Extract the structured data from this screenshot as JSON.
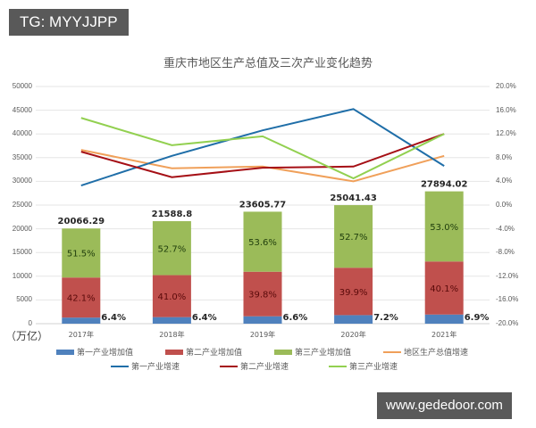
{
  "watermarks": {
    "top": "TG: MYYJJPP",
    "bottom": "www.gededoor.com"
  },
  "chart_data": {
    "type": "bar",
    "subtype": "stacked bar + line combo (dual axis)",
    "title": "重庆市地区生产总值及三次产业变化趋势",
    "xlabel": "",
    "ylabel": "（万亿）",
    "y2label": "",
    "categories": [
      "2017年",
      "2018年",
      "2019年",
      "2020年",
      "2021年"
    ],
    "ylim": [
      0,
      50000
    ],
    "y_ticks": [
      "50000",
      "45000",
      "40000",
      "35000",
      "30000",
      "25000",
      "20000",
      "15000",
      "10000",
      "5000",
      "0"
    ],
    "y2lim": [
      -20,
      20
    ],
    "y2_ticks": [
      "20.0%",
      "16.0%",
      "12.0%",
      "8.0%",
      "4.0%",
      "0.0%",
      "-4.0%",
      "-8.0%",
      "-12.0%",
      "-16.0%",
      "-20.0%"
    ],
    "grid": true,
    "legend_position": "bottom",
    "totals": [
      20066.29,
      21588.8,
      23605.77,
      25041.43,
      27894.02
    ],
    "total_labels": [
      "20066.29",
      "21588.8",
      "23605.77",
      "25041.43",
      "27894.02"
    ],
    "bar_series": [
      {
        "name": "第一产业增加值",
        "color": "#4f81bd",
        "share_pct": [
          6.4,
          6.4,
          6.6,
          7.2,
          6.9
        ],
        "labels": [
          "6.4%",
          "6.4%",
          "6.6%",
          "7.2%",
          "6.9%"
        ]
      },
      {
        "name": "第二产业增加值",
        "color": "#c0504d",
        "share_pct": [
          42.1,
          41.0,
          39.8,
          39.9,
          40.1
        ],
        "labels": [
          "42.1%",
          "41.0%",
          "39.8%",
          "39.9%",
          "40.1%"
        ]
      },
      {
        "name": "第三产业增加值",
        "color": "#9bbb59",
        "share_pct": [
          51.5,
          52.7,
          53.6,
          52.7,
          53.0
        ],
        "labels": [
          "51.5%",
          "52.7%",
          "53.6%",
          "52.7%",
          "53.0%"
        ]
      }
    ],
    "line_series": [
      {
        "name": "地区生产总值增速",
        "color": "#f0a05a",
        "axis": "right",
        "values": [
          9.3,
          6.2,
          6.5,
          4.0,
          8.3
        ]
      },
      {
        "name": "第一产业增速",
        "color": "#1f6ea8",
        "axis": "right",
        "values": [
          3.3,
          8.3,
          12.6,
          16.2,
          6.6
        ]
      },
      {
        "name": "第二产业增速",
        "color": "#a50f15",
        "axis": "right",
        "values": [
          9.0,
          4.7,
          6.3,
          6.5,
          12.0
        ]
      },
      {
        "name": "第三产业增速",
        "color": "#92d050",
        "axis": "right",
        "values": [
          14.7,
          10.1,
          11.6,
          4.5,
          12.0
        ]
      }
    ]
  },
  "legend": {
    "row1": [
      {
        "label": "第一产业增加值",
        "kind": "bar",
        "color": "#4f81bd"
      },
      {
        "label": "第二产业增加值",
        "kind": "bar",
        "color": "#c0504d"
      },
      {
        "label": "第三产业增加值",
        "kind": "bar",
        "color": "#9bbb59"
      },
      {
        "label": "地区生产总值增速",
        "kind": "line",
        "color": "#f0a05a"
      }
    ],
    "row2": [
      {
        "label": "第一产业增速",
        "kind": "line",
        "color": "#1f6ea8"
      },
      {
        "label": "第二产业增速",
        "kind": "line",
        "color": "#a50f15"
      },
      {
        "label": "第三产业增速",
        "kind": "line",
        "color": "#92d050"
      }
    ]
  }
}
